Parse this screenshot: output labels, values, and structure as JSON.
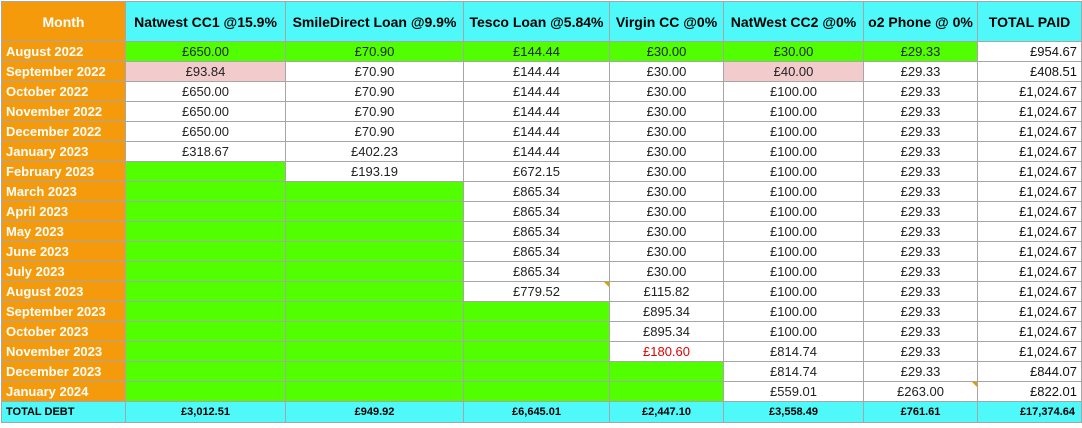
{
  "headers": [
    "Month",
    "Natwest CC1 @15.9%",
    "SmileDirect Loan @9.9%",
    "Tesco Loan @5.84%",
    "Virgin CC @0%",
    "NatWest CC2 @0%",
    "o2 Phone @ 0%",
    "TOTAL PAID"
  ],
  "colors": {
    "header_cyan": "#4ff9f9",
    "month_orange": "#f59a0a",
    "paid_green": "#52ff00",
    "partial_pink": "#f2cccc",
    "red_text": "#e00000"
  },
  "rows": [
    {
      "month": "August 2022",
      "cells": [
        "£650.00",
        "£70.90",
        "£144.44",
        "£30.00",
        "£30.00",
        "£29.33"
      ],
      "total": "£954.67"
    },
    {
      "month": "September 2022",
      "cells": [
        "£93.84",
        "£70.90",
        "£144.44",
        "£30.00",
        "£40.00",
        "£29.33"
      ],
      "total": "£408.51"
    },
    {
      "month": "October 2022",
      "cells": [
        "£650.00",
        "£70.90",
        "£144.44",
        "£30.00",
        "£100.00",
        "£29.33"
      ],
      "total": "£1,024.67"
    },
    {
      "month": "November 2022",
      "cells": [
        "£650.00",
        "£70.90",
        "£144.44",
        "£30.00",
        "£100.00",
        "£29.33"
      ],
      "total": "£1,024.67"
    },
    {
      "month": "December 2022",
      "cells": [
        "£650.00",
        "£70.90",
        "£144.44",
        "£30.00",
        "£100.00",
        "£29.33"
      ],
      "total": "£1,024.67"
    },
    {
      "month": "January 2023",
      "cells": [
        "£318.67",
        "£402.23",
        "£144.44",
        "£30.00",
        "£100.00",
        "£29.33"
      ],
      "total": "£1,024.67"
    },
    {
      "month": "February 2023",
      "cells": [
        "",
        "£193.19",
        "£672.15",
        "£30.00",
        "£100.00",
        "£29.33"
      ],
      "total": "£1,024.67"
    },
    {
      "month": "March 2023",
      "cells": [
        "",
        "",
        "£865.34",
        "£30.00",
        "£100.00",
        "£29.33"
      ],
      "total": "£1,024.67"
    },
    {
      "month": "April 2023",
      "cells": [
        "",
        "",
        "£865.34",
        "£30.00",
        "£100.00",
        "£29.33"
      ],
      "total": "£1,024.67"
    },
    {
      "month": "May 2023",
      "cells": [
        "",
        "",
        "£865.34",
        "£30.00",
        "£100.00",
        "£29.33"
      ],
      "total": "£1,024.67"
    },
    {
      "month": "June 2023",
      "cells": [
        "",
        "",
        "£865.34",
        "£30.00",
        "£100.00",
        "£29.33"
      ],
      "total": "£1,024.67"
    },
    {
      "month": "July 2023",
      "cells": [
        "",
        "",
        "£865.34",
        "£30.00",
        "£100.00",
        "£29.33"
      ],
      "total": "£1,024.67"
    },
    {
      "month": "August 2023",
      "cells": [
        "",
        "",
        "£779.52",
        "£115.82",
        "£100.00",
        "£29.33"
      ],
      "total": "£1,024.67"
    },
    {
      "month": "September 2023",
      "cells": [
        "",
        "",
        "",
        "£895.34",
        "£100.00",
        "£29.33"
      ],
      "total": "£1,024.67"
    },
    {
      "month": "October 2023",
      "cells": [
        "",
        "",
        "",
        "£895.34",
        "£100.00",
        "£29.33"
      ],
      "total": "£1,024.67"
    },
    {
      "month": "November 2023",
      "cells": [
        "",
        "",
        "",
        "£180.60",
        "£814.74",
        "£29.33"
      ],
      "total": "£1,024.67"
    },
    {
      "month": "December 2023",
      "cells": [
        "",
        "",
        "",
        "",
        "£814.74",
        "£29.33"
      ],
      "total": "£844.07"
    },
    {
      "month": "January 2024",
      "cells": [
        "",
        "",
        "",
        "",
        "£559.01",
        "£263.00"
      ],
      "total": "£822.01"
    }
  ],
  "totals": {
    "label": "TOTAL DEBT",
    "values": [
      "£3,012.51",
      "£949.92",
      "£6,645.01",
      "£2,447.10",
      "£3,558.49",
      "£761.61",
      "£17,374.64"
    ]
  }
}
